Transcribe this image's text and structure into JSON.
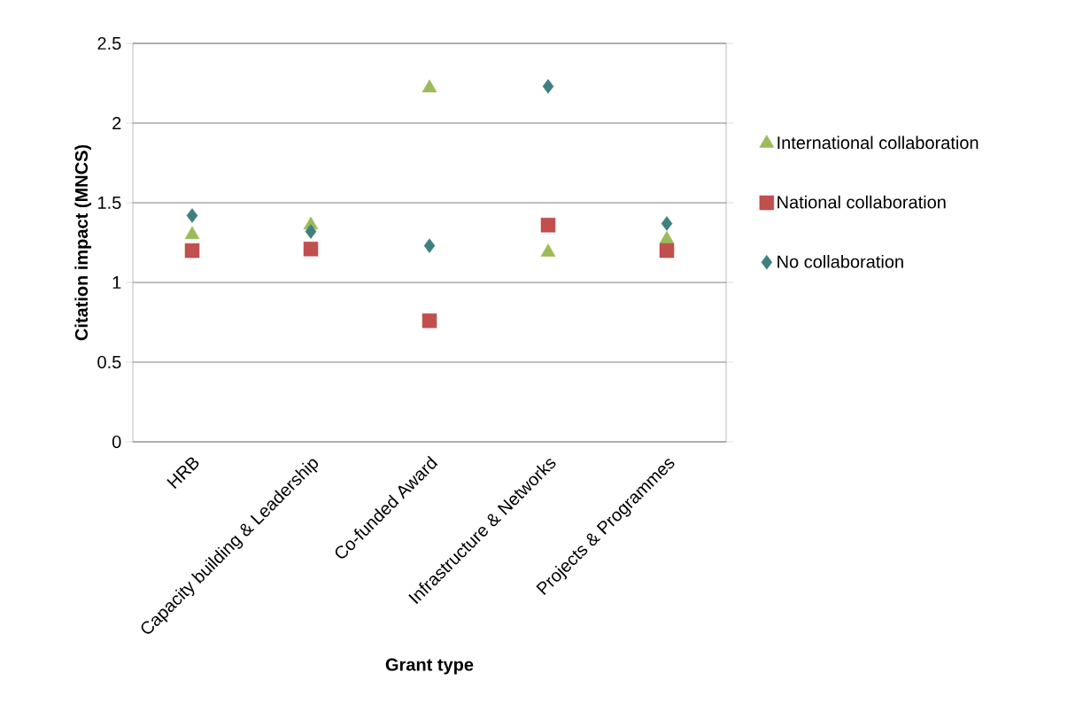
{
  "chart_data": {
    "type": "scatter",
    "xlabel": "Grant type",
    "ylabel": "Citation impact (MNCS)",
    "categories": [
      "HRB",
      "Capacity building & Leadership",
      "Co-funded Award",
      "Infrastructure & Networks",
      "Projects & Programmes"
    ],
    "series": [
      {
        "name": "International collaboration",
        "color": "#9bbb59",
        "marker": "triangle",
        "values": [
          1.3,
          1.36,
          2.22,
          1.19,
          1.27
        ]
      },
      {
        "name": "National collaboration",
        "color": "#c0504d",
        "marker": "square",
        "values": [
          1.2,
          1.21,
          0.76,
          1.36,
          1.2
        ]
      },
      {
        "name": "No collaboration",
        "color": "#3f7f7f",
        "marker": "diamond",
        "values": [
          1.42,
          1.32,
          1.23,
          2.23,
          1.37
        ]
      }
    ],
    "ylim": [
      0,
      2.5
    ],
    "yticks": [
      0,
      0.5,
      1,
      1.5,
      2,
      2.5
    ],
    "grid": "y",
    "legend": "right"
  }
}
